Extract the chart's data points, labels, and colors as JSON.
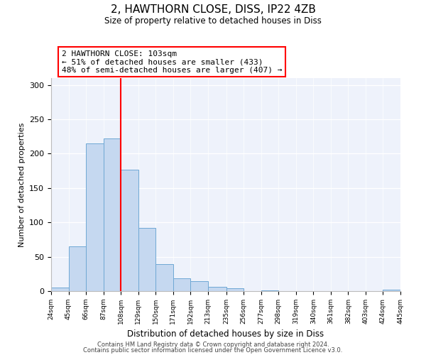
{
  "title": "2, HAWTHORN CLOSE, DISS, IP22 4ZB",
  "subtitle": "Size of property relative to detached houses in Diss",
  "xlabel": "Distribution of detached houses by size in Diss",
  "ylabel": "Number of detached properties",
  "bin_edges": [
    24,
    45,
    66,
    87,
    108,
    129,
    150,
    171,
    192,
    213,
    235,
    256,
    277,
    298,
    319,
    340,
    361,
    382,
    403,
    424,
    445
  ],
  "bar_heights": [
    5,
    65,
    215,
    222,
    177,
    92,
    39,
    19,
    14,
    6,
    4,
    0,
    1,
    0,
    0,
    0,
    0,
    0,
    0,
    2
  ],
  "bar_color": "#c5d8f0",
  "bar_edge_color": "#6fa8d4",
  "vline_x": 108,
  "vline_color": "red",
  "annotation_line1": "2 HAWTHORN CLOSE: 103sqm",
  "annotation_line2": "← 51% of detached houses are smaller (433)",
  "annotation_line3": "48% of semi-detached houses are larger (407) →",
  "ylim": [
    0,
    310
  ],
  "yticks": [
    0,
    50,
    100,
    150,
    200,
    250,
    300
  ],
  "background_color": "#eef2fb",
  "footer_line1": "Contains HM Land Registry data © Crown copyright and database right 2024.",
  "footer_line2": "Contains public sector information licensed under the Open Government Licence v3.0."
}
